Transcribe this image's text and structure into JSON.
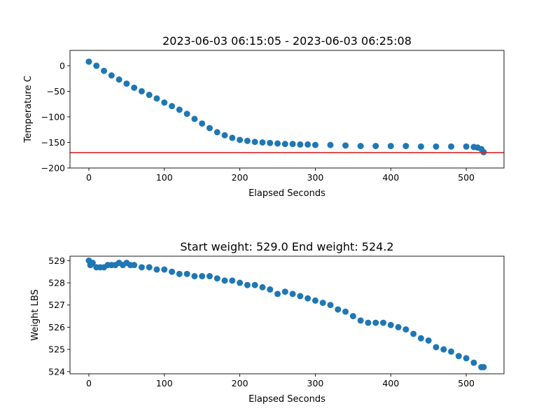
{
  "colors": {
    "marker": "#1f77b4",
    "reference_line": "#d62728",
    "axes": "#000000",
    "background": "#ffffff"
  },
  "chart_data": [
    {
      "type": "scatter",
      "title": "2023-06-03 06:15:05 - 2023-06-03 06:25:08",
      "xlabel": "Elapsed Seconds",
      "ylabel": "Temperature C",
      "xlim": [
        -25,
        550
      ],
      "ylim": [
        -200,
        30
      ],
      "xticks": [
        0,
        100,
        200,
        300,
        400,
        500
      ],
      "yticks": [
        0,
        -50,
        -100,
        -150,
        -200
      ],
      "ytick_labels": [
        "0",
        "−50",
        "−100",
        "−150",
        "−200"
      ],
      "grid": false,
      "reference_line": {
        "orientation": "horizontal",
        "y": -170
      },
      "series": [
        {
          "x": [
            0,
            10,
            20,
            30,
            40,
            50,
            60,
            70,
            80,
            90,
            100,
            110,
            120,
            130,
            140,
            150,
            160,
            170,
            180,
            190,
            200,
            210,
            220,
            230,
            240,
            250,
            260,
            270,
            280,
            290,
            300,
            320,
            340,
            360,
            380,
            400,
            420,
            440,
            460,
            480,
            500,
            510,
            515,
            520,
            523
          ],
          "y": [
            8,
            0,
            -10,
            -19,
            -27,
            -35,
            -43,
            -50,
            -57,
            -64,
            -72,
            -79,
            -86,
            -94,
            -104,
            -113,
            -122,
            -130,
            -136,
            -141,
            -145,
            -147,
            -149,
            -150,
            -151,
            -152,
            -153,
            -153,
            -154,
            -154,
            -155,
            -155,
            -156,
            -157,
            -157,
            -157,
            -157,
            -158,
            -158,
            -158,
            -158,
            -159,
            -160,
            -163,
            -169
          ]
        }
      ]
    },
    {
      "type": "scatter",
      "title": "Start weight: 529.0 End weight: 524.2",
      "xlabel": "Elapsed Seconds",
      "ylabel": "Weight LBS",
      "xlim": [
        -25,
        550
      ],
      "ylim": [
        523.9,
        529.2
      ],
      "xticks": [
        0,
        100,
        200,
        300,
        400,
        500
      ],
      "yticks": [
        524,
        525,
        526,
        527,
        528,
        529
      ],
      "grid": false,
      "series": [
        {
          "x": [
            0,
            2,
            5,
            10,
            15,
            20,
            25,
            30,
            35,
            40,
            45,
            50,
            55,
            60,
            70,
            80,
            90,
            100,
            110,
            120,
            130,
            140,
            150,
            160,
            170,
            180,
            190,
            200,
            210,
            220,
            230,
            240,
            250,
            260,
            270,
            280,
            290,
            300,
            310,
            320,
            330,
            340,
            350,
            360,
            370,
            380,
            390,
            400,
            410,
            420,
            430,
            440,
            450,
            460,
            470,
            480,
            490,
            500,
            510,
            520,
            523
          ],
          "y": [
            529.0,
            528.8,
            528.9,
            528.7,
            528.7,
            528.7,
            528.8,
            528.8,
            528.8,
            528.9,
            528.8,
            528.9,
            528.8,
            528.8,
            528.7,
            528.7,
            528.6,
            528.6,
            528.5,
            528.4,
            528.4,
            528.3,
            528.3,
            528.3,
            528.2,
            528.1,
            528.1,
            528.0,
            527.9,
            527.9,
            527.8,
            527.7,
            527.5,
            527.6,
            527.5,
            527.4,
            527.3,
            527.2,
            527.1,
            527.0,
            526.8,
            526.7,
            526.5,
            526.3,
            526.2,
            526.2,
            526.2,
            526.1,
            526.0,
            525.9,
            525.7,
            525.5,
            525.4,
            525.1,
            525.0,
            524.9,
            524.7,
            524.6,
            524.4,
            524.2,
            524.2
          ]
        }
      ]
    }
  ]
}
